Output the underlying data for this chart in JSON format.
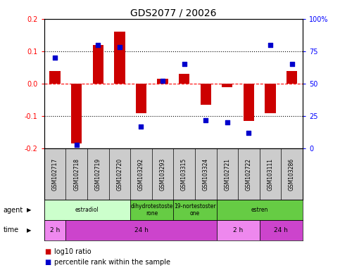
{
  "title": "GDS2077 / 20026",
  "samples": [
    "GSM102717",
    "GSM102718",
    "GSM102719",
    "GSM102720",
    "GSM103292",
    "GSM103293",
    "GSM103315",
    "GSM103324",
    "GSM102721",
    "GSM102722",
    "GSM103111",
    "GSM103286"
  ],
  "log10_ratio": [
    0.04,
    -0.185,
    0.12,
    0.16,
    -0.09,
    0.015,
    0.03,
    -0.065,
    -0.01,
    -0.115,
    -0.09,
    0.04
  ],
  "percentile_rank": [
    70,
    3,
    80,
    78,
    17,
    52,
    65,
    22,
    20,
    12,
    80,
    65
  ],
  "ylim": [
    -0.2,
    0.2
  ],
  "yticks_left": [
    -0.2,
    -0.1,
    0.0,
    0.1,
    0.2
  ],
  "yticks_right": [
    0,
    25,
    50,
    75,
    100
  ],
  "bar_color": "#cc0000",
  "dot_color": "#0000cc",
  "agent_groups": [
    {
      "label": "estradiol",
      "start": 0,
      "end": 4,
      "color": "#ccffcc"
    },
    {
      "label": "dihydrotestoste\nrone",
      "start": 4,
      "end": 6,
      "color": "#66cc44"
    },
    {
      "label": "19-nortestoster\none",
      "start": 6,
      "end": 8,
      "color": "#66cc44"
    },
    {
      "label": "estren",
      "start": 8,
      "end": 12,
      "color": "#66cc44"
    }
  ],
  "time_groups": [
    {
      "label": "2 h",
      "start": 0,
      "end": 1,
      "color": "#ee88ee"
    },
    {
      "label": "24 h",
      "start": 1,
      "end": 8,
      "color": "#cc44cc"
    },
    {
      "label": "2 h",
      "start": 8,
      "end": 10,
      "color": "#ee88ee"
    },
    {
      "label": "24 h",
      "start": 10,
      "end": 12,
      "color": "#cc44cc"
    }
  ],
  "agent_label": "agent",
  "time_label": "time",
  "legend_red": "log10 ratio",
  "legend_blue": "percentile rank within the sample",
  "bg_color": "#ffffff",
  "sample_bg_color": "#cccccc",
  "tick_label_fontsize": 7,
  "title_fontsize": 10
}
